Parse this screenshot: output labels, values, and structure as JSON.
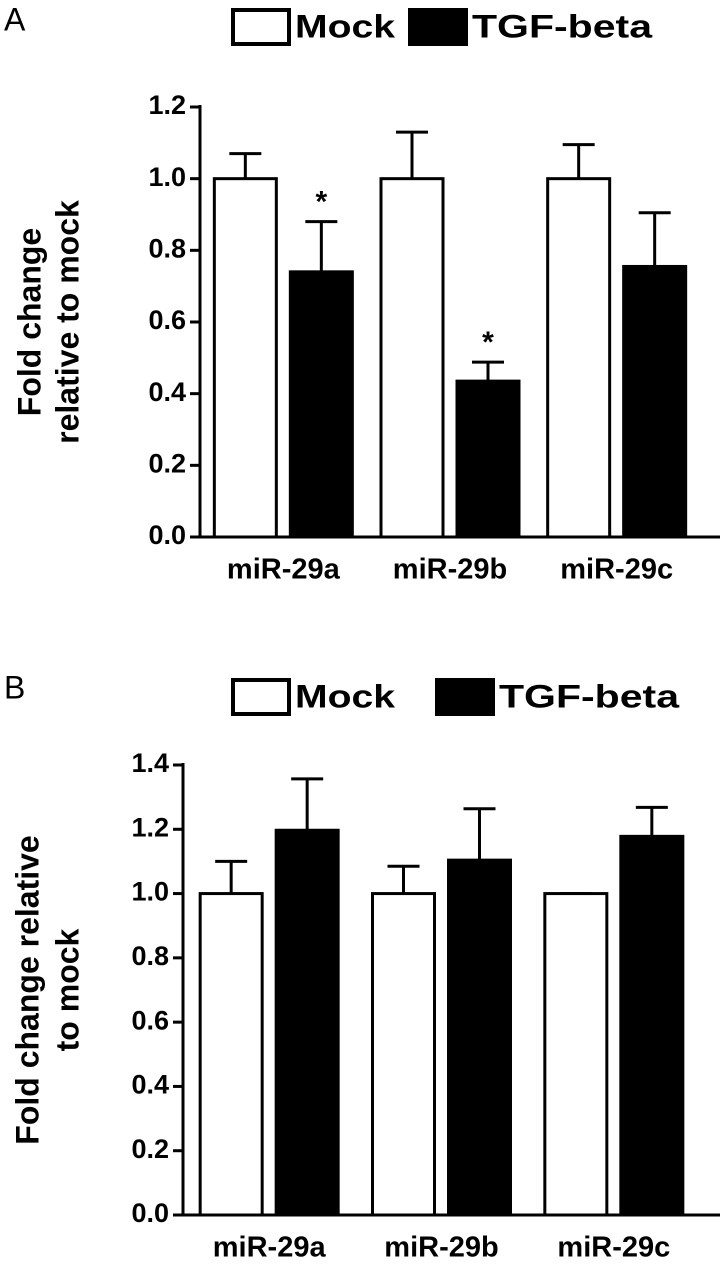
{
  "chart_data": [
    {
      "type": "bar",
      "panel_label": "A",
      "ylabel": [
        "Fold change",
        "relative to mock"
      ],
      "categories": [
        "miR-29a",
        "miR-29b",
        "miR-29c"
      ],
      "series": [
        {
          "name": "Mock",
          "color": "#ffffff",
          "values": [
            1.0,
            1.0,
            1.0
          ],
          "errors": [
            0.07,
            0.13,
            0.095
          ]
        },
        {
          "name": "TGF-beta",
          "color": "#000000",
          "values": [
            0.74,
            0.435,
            0.755
          ],
          "errors": [
            0.14,
            0.053,
            0.15
          ]
        }
      ],
      "annotations": [
        {
          "text": "*",
          "series": "TGF-beta",
          "category": "miR-29a"
        },
        {
          "text": "*",
          "series": "TGF-beta",
          "category": "miR-29b"
        }
      ],
      "ylim": [
        0,
        1.2
      ],
      "yticks": [
        {
          "value": 0,
          "label": "0.0"
        },
        0.2,
        0.4,
        0.6,
        0.8,
        {
          "value": 1,
          "label": "1.0"
        },
        1.2
      ]
    },
    {
      "type": "bar",
      "panel_label": "B",
      "ylabel": [
        "Fold change relative",
        "to mock"
      ],
      "categories": [
        "miR-29a",
        "miR-29b",
        "miR-29c"
      ],
      "series": [
        {
          "name": "Mock",
          "color": "#ffffff",
          "values": [
            1.0,
            1.0,
            1.0
          ],
          "errors": [
            0.1,
            0.085,
            0
          ]
        },
        {
          "name": "TGF-beta",
          "color": "#000000",
          "values": [
            1.197,
            1.104,
            1.178
          ],
          "errors": [
            0.16,
            0.16,
            0.09
          ]
        }
      ],
      "ylim": [
        0,
        1.4
      ],
      "yticks": [
        {
          "value": 0,
          "label": "0.0"
        },
        0.2,
        0.4,
        0.6,
        0.8,
        {
          "value": 1,
          "label": "1.0"
        },
        1.2,
        1.4
      ]
    }
  ]
}
